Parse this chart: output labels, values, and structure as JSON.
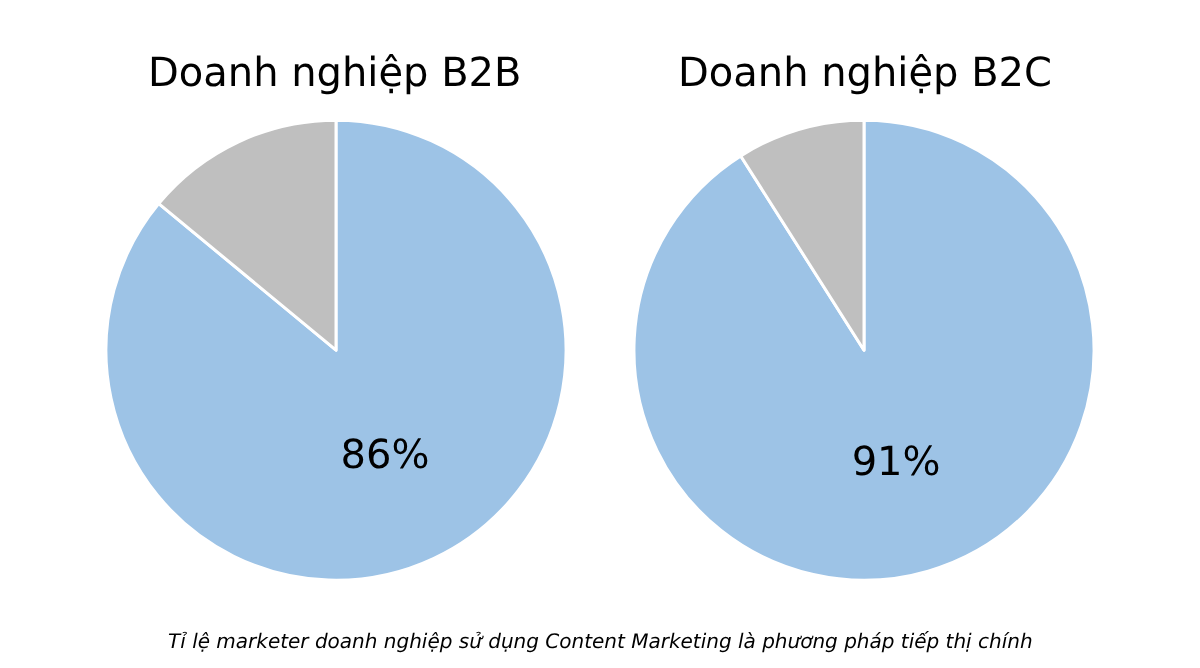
{
  "chart_data": [
    {
      "type": "pie",
      "title": "Doanh nghiệp B2B",
      "categories": [
        null,
        null
      ],
      "values": [
        86,
        14
      ],
      "colors": [
        "#9dc3e6",
        "#bfbfbf"
      ],
      "value_labels": [
        "86%",
        null
      ],
      "legend": false,
      "annotations": [
        "Tỉ lệ marketer doanh nghiệp sử dụng Content Marketing là phương pháp tiếp thị chính"
      ]
    },
    {
      "type": "pie",
      "title": "Doanh nghiệp B2C",
      "categories": [
        null,
        null
      ],
      "values": [
        91,
        9
      ],
      "colors": [
        "#9dc3e6",
        "#bfbfbf"
      ],
      "value_labels": [
        "91%",
        null
      ],
      "legend": false
    }
  ]
}
